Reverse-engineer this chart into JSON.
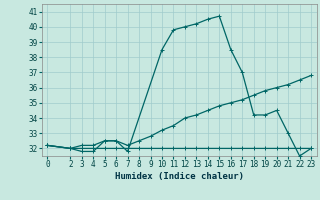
{
  "xlabel": "Humidex (Indice chaleur)",
  "bg_color": "#c8e8e0",
  "grid_color": "#a0cccc",
  "line_color": "#006666",
  "xlim": [
    -0.5,
    23.5
  ],
  "ylim": [
    31.5,
    41.5
  ],
  "xticks": [
    0,
    2,
    3,
    4,
    5,
    6,
    7,
    8,
    9,
    10,
    11,
    12,
    13,
    14,
    15,
    16,
    17,
    18,
    19,
    20,
    21,
    22,
    23
  ],
  "yticks": [
    32,
    33,
    34,
    35,
    36,
    37,
    38,
    39,
    40,
    41
  ],
  "line1_x": [
    0,
    2,
    3,
    4,
    5,
    6,
    7,
    8,
    9,
    10,
    11,
    12,
    13,
    14,
    15,
    16,
    17,
    18,
    19,
    20,
    21,
    22,
    23
  ],
  "line1_y": [
    32.2,
    32.0,
    32.0,
    32.0,
    32.0,
    32.0,
    32.0,
    32.0,
    32.0,
    32.0,
    32.0,
    32.0,
    32.0,
    32.0,
    32.0,
    32.0,
    32.0,
    32.0,
    32.0,
    32.0,
    32.0,
    32.0,
    32.0
  ],
  "line2_x": [
    0,
    2,
    3,
    4,
    5,
    6,
    7,
    8,
    9,
    10,
    11,
    12,
    13,
    14,
    15,
    16,
    17,
    18,
    19,
    20,
    21,
    22,
    23
  ],
  "line2_y": [
    32.2,
    32.0,
    32.2,
    32.2,
    32.5,
    32.5,
    32.2,
    32.5,
    32.8,
    33.2,
    33.5,
    34.0,
    34.2,
    34.5,
    34.8,
    35.0,
    35.2,
    35.5,
    35.8,
    36.0,
    36.2,
    36.5,
    36.8
  ],
  "line3_x": [
    0,
    2,
    3,
    4,
    5,
    6,
    7,
    10,
    11,
    12,
    13,
    14,
    15,
    16,
    17,
    18,
    19,
    20,
    21,
    22,
    23
  ],
  "line3_y": [
    32.2,
    32.0,
    31.8,
    31.8,
    32.5,
    32.5,
    31.8,
    38.5,
    39.8,
    40.0,
    40.2,
    40.5,
    40.7,
    38.5,
    37.0,
    34.2,
    34.2,
    34.5,
    33.0,
    31.5,
    32.0
  ],
  "linewidth": 0.9,
  "markersize": 3,
  "tick_fontsize": 5.5,
  "xlabel_fontsize": 6.5
}
